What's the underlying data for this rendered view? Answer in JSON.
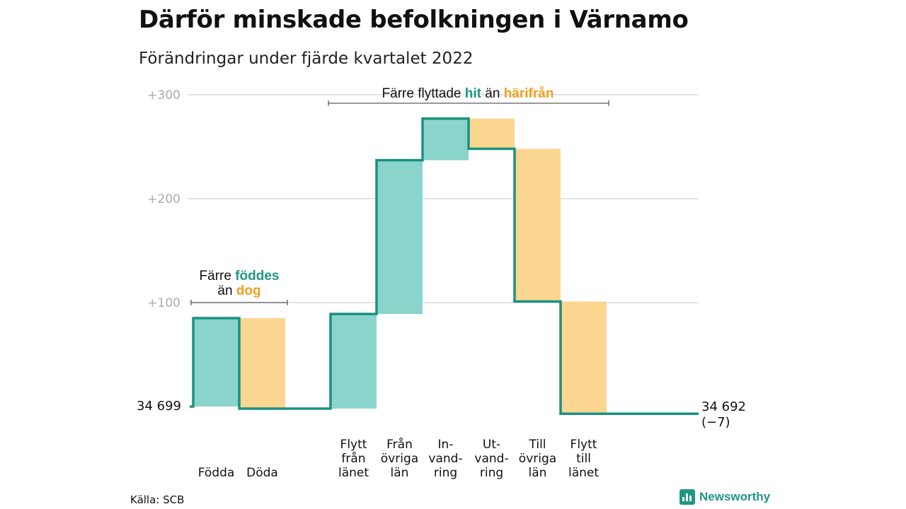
{
  "title": "Därför minskade befolkningen i Värnamo",
  "subtitle": "Förändringar under fjärde kvartalet 2022",
  "source": "Källa: SCB",
  "brand": {
    "name": "Newsworthy",
    "icon": "bar-chart-logo-icon"
  },
  "colors": {
    "in": "#8bd4cb",
    "out": "#fbd690",
    "line": "#1a9181",
    "teal_text": "#1f9685",
    "orange_text": "#f0a020",
    "grid": "#dcdcdc",
    "tick": "#aaaaaa"
  },
  "chart_data": {
    "type": "waterfall",
    "baseline_value": 34699,
    "start_label": "34 699",
    "end_label": "34 692",
    "end_change_label": "(−7)",
    "y_ticks": [
      {
        "value": 100,
        "label": "+100"
      },
      {
        "value": 200,
        "label": "+200"
      },
      {
        "value": 300,
        "label": "+300"
      }
    ],
    "steps": [
      {
        "label": [
          "Födda"
        ],
        "change": 85,
        "kind": "in"
      },
      {
        "label": [
          "Döda"
        ],
        "change": -87,
        "kind": "out"
      },
      {
        "label": [
          "Flytt",
          "från",
          "länet"
        ],
        "change": 91,
        "kind": "in"
      },
      {
        "label": [
          "Från",
          "övriga",
          "län"
        ],
        "change": 148,
        "kind": "in"
      },
      {
        "label": [
          "In-",
          "vand-",
          "ring"
        ],
        "change": 40,
        "kind": "in"
      },
      {
        "label": [
          "Ut-",
          "vand-",
          "ring"
        ],
        "change": -29,
        "kind": "out"
      },
      {
        "label": [
          "Till",
          "övriga",
          "län"
        ],
        "change": -147,
        "kind": "out"
      },
      {
        "label": [
          "Flytt",
          "till",
          "länet"
        ],
        "change": -108,
        "kind": "out"
      }
    ],
    "annotations": [
      {
        "parts": [
          "Färre ",
          "födde s",
          " "
        ],
        "line1": [
          "Färre ",
          "föddes"
        ],
        "line2": [
          "än ",
          "dog"
        ]
      },
      {
        "parts": [
          "Färre flyttade ",
          "hit",
          " än ",
          "härifrån"
        ]
      }
    ],
    "gridlines": true
  }
}
